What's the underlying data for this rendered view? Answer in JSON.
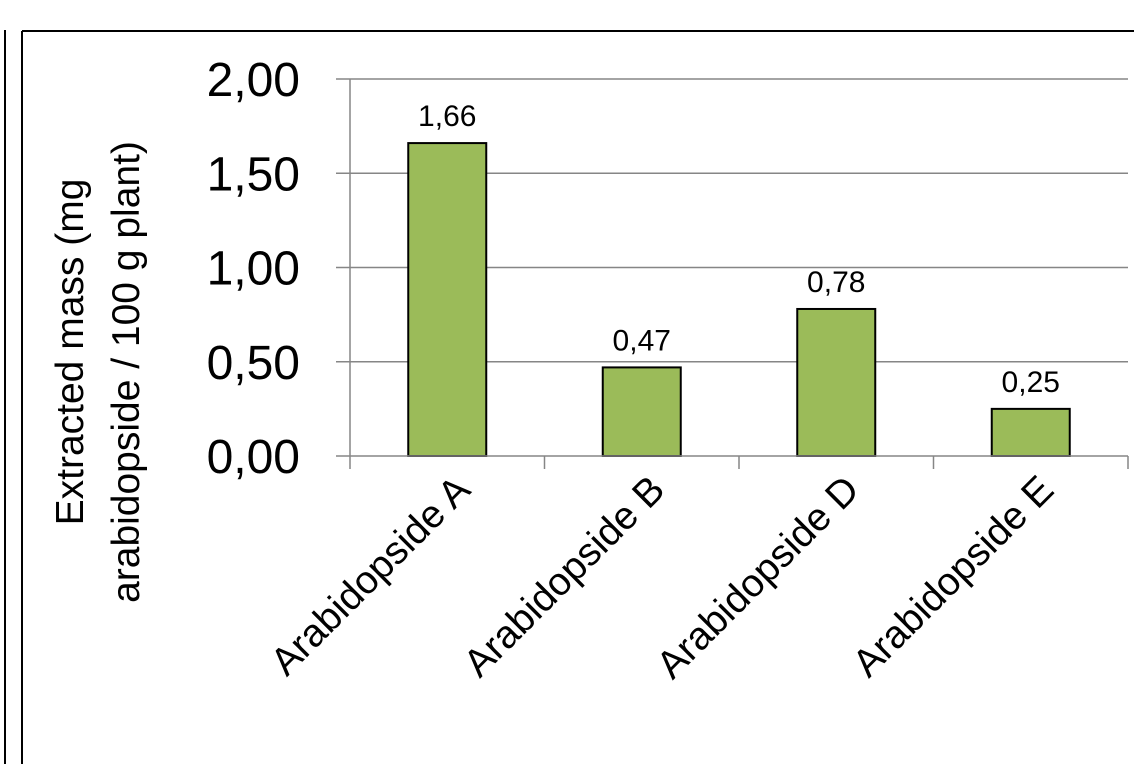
{
  "chart_data": {
    "type": "bar",
    "title": "",
    "categories": [
      "Arabidopside A",
      "Arabidopside B",
      "Arabidopside D",
      "Arabidopside E"
    ],
    "values": [
      1.66,
      0.47,
      0.78,
      0.25
    ],
    "data_labels": [
      "1,66",
      "0,47",
      "0,78",
      "0,25"
    ],
    "ylabel_lines": [
      "Extracted mass (mg",
      "arabidopside / 100 g plant)"
    ],
    "xlabel": "",
    "ylim": [
      0,
      2
    ],
    "yticks": [
      0,
      0.5,
      1,
      1.5,
      2
    ],
    "ytick_labels": [
      "0,00",
      "0,50",
      "1,00",
      "1,50",
      "2,00"
    ],
    "grid": "horizontal",
    "legend": "none",
    "bar_color": "#9bbb59",
    "bar_edge_color": "#000000",
    "grid_color": "#868686"
  }
}
